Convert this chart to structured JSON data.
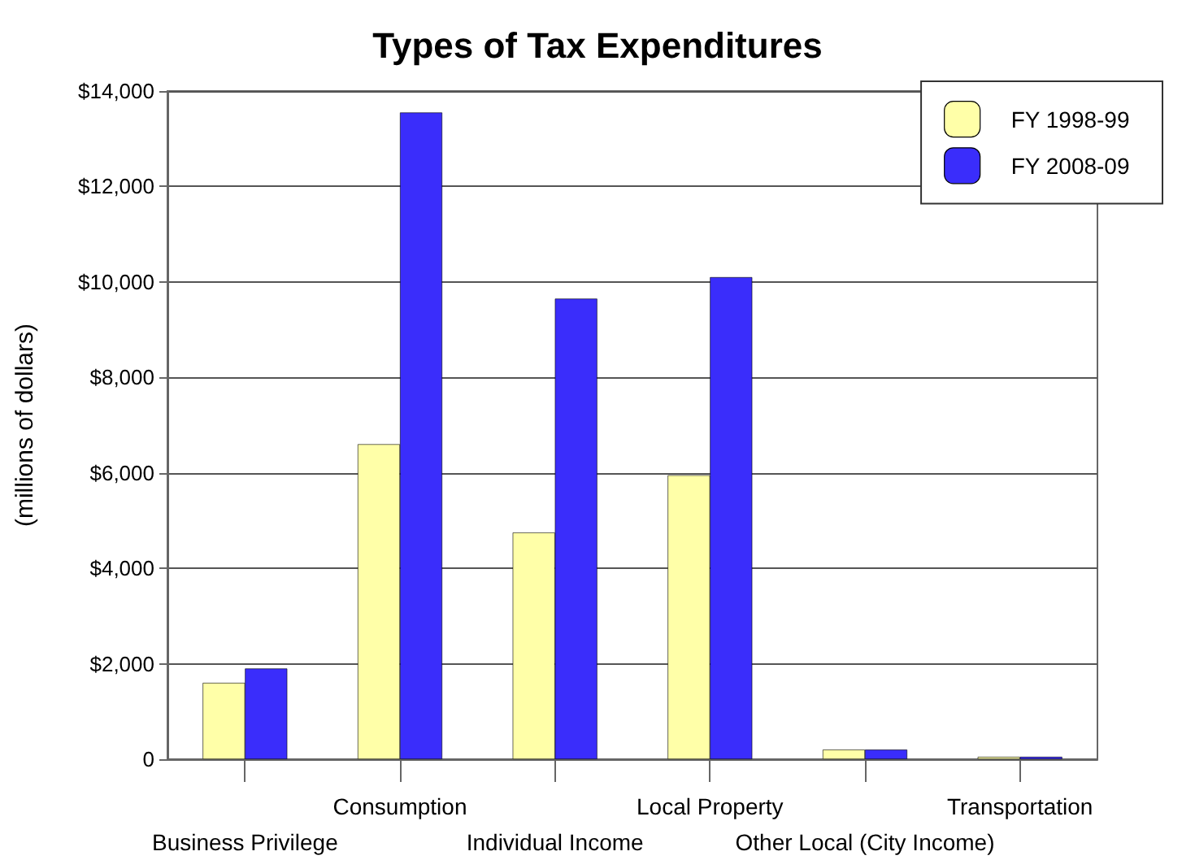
{
  "chart_data": {
    "type": "bar",
    "title": "Types of Tax Expenditures",
    "ylabel": "(millions of dollars)",
    "categories": [
      "Business Privilege",
      "Consumption",
      "Individual Income",
      "Local Property",
      "Other Local (City Income)",
      "Transportation"
    ],
    "series": [
      {
        "name": "FY 1998-99",
        "color": "#ffffa8",
        "values": [
          1600,
          6600,
          4750,
          5950,
          200,
          50
        ]
      },
      {
        "name": "FY 2008-09",
        "color": "#3a2dfb",
        "values": [
          1900,
          13550,
          9650,
          10100,
          200,
          50
        ]
      }
    ],
    "ylim": [
      0,
      14000
    ],
    "yticks": [
      {
        "value": 0,
        "label": "0"
      },
      {
        "value": 2000,
        "label": "$2,000"
      },
      {
        "value": 4000,
        "label": "$4,000"
      },
      {
        "value": 6000,
        "label": "$6,000"
      },
      {
        "value": 8000,
        "label": "$8,000"
      },
      {
        "value": 10000,
        "label": "$10,000"
      },
      {
        "value": 12000,
        "label": "$12,000"
      },
      {
        "value": 14000,
        "label": "$14,000"
      }
    ],
    "grid": "y",
    "legend": "top right"
  }
}
